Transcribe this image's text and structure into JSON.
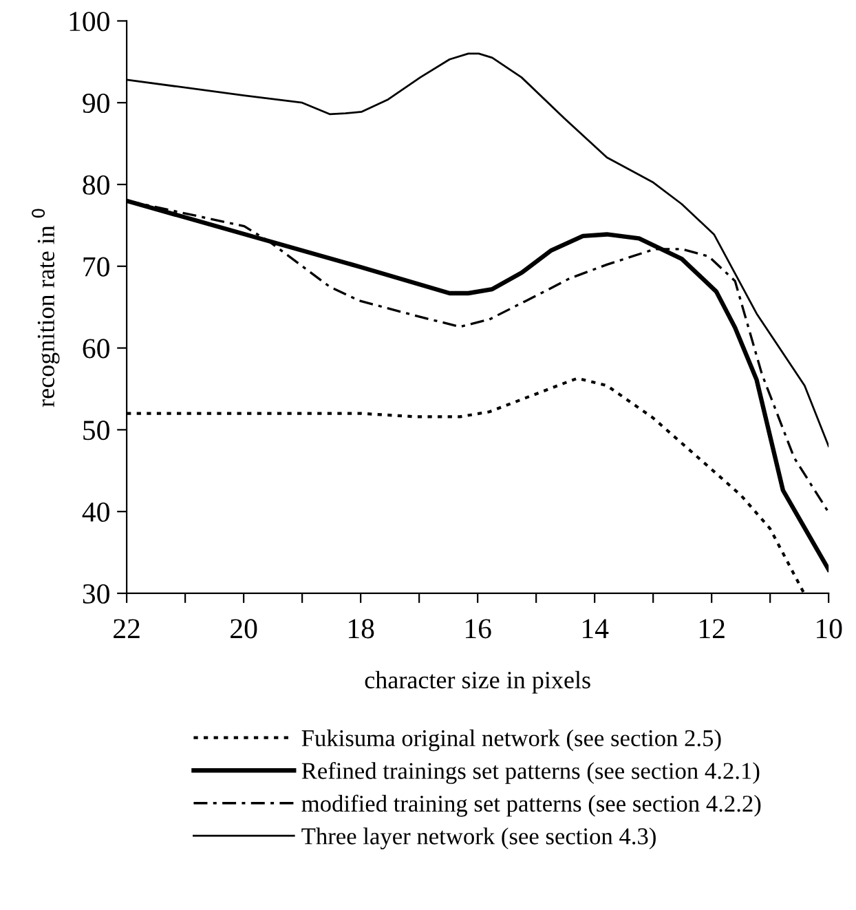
{
  "chart_data": {
    "type": "line",
    "xlabel": "character size in pixels",
    "ylabel": "recognition rate in $^{0}$",
    "xlim": [
      22,
      10
    ],
    "ylim": [
      30,
      100
    ],
    "xticks": [
      22,
      {
        "value": 21,
        "label": null
      },
      20,
      {
        "value": 19,
        "label": null
      },
      18,
      {
        "value": 17,
        "label": null
      },
      16,
      {
        "value": 15,
        "label": null
      },
      14,
      {
        "value": 13,
        "label": null
      },
      12,
      {
        "value": 11,
        "label": null
      },
      10
    ],
    "yticks": [
      30,
      40,
      50,
      60,
      70,
      80,
      90,
      100
    ],
    "grid": false,
    "legend": "bottom",
    "marker": "none",
    "series": [
      {
        "name": "Fukisuma original network (see section 2.5)",
        "color": "#000000",
        "line_style": "dotted",
        "x": [
          22,
          20,
          18,
          17.07,
          16.3,
          15.8,
          14.52,
          14.29,
          13.79,
          13.01,
          12.23,
          11.5,
          11.0,
          10.42
        ],
        "values": [
          52,
          52,
          52,
          51.6,
          51.6,
          52.2,
          55.7,
          56.3,
          55.4,
          51.5,
          46.6,
          42.0,
          37.9,
          30
        ]
      },
      {
        "name": "Refined trainings set patterns (see section 4.2.1)",
        "color": "#000000",
        "line_style": "solid",
        "x": [
          22,
          18,
          16.48,
          16.16,
          15.75,
          15.25,
          14.75,
          14.2,
          13.79,
          13.24,
          12.51,
          11.92,
          11.6,
          11.23,
          10.78,
          10
        ],
        "values": [
          78,
          69.9,
          66.7,
          66.7,
          67.2,
          69.2,
          71.9,
          73.7,
          73.9,
          73.4,
          70.9,
          66.9,
          62.5,
          56.1,
          42.6,
          32.9
        ]
      },
      {
        "name": "modified training set patterns (see section 4.2.2)",
        "color": "#000000",
        "line_style": "dashdot",
        "x": [
          22,
          21.09,
          19.99,
          19.54,
          18.53,
          18.03,
          16.98,
          16.3,
          15.8,
          14.97,
          14.43,
          13.79,
          12.97,
          12.51,
          12.05,
          11.6,
          11.14,
          10.59,
          10
        ],
        "values": [
          78,
          76.6,
          74.9,
          72.9,
          67.5,
          65.8,
          63.8,
          62.6,
          63.5,
          66.5,
          68.5,
          70.2,
          72.1,
          72.1,
          71.2,
          68.2,
          56.8,
          46.6,
          39.9
        ]
      },
      {
        "name": "Three layer network (see section 4.3)",
        "color": "#000000",
        "line_style": "solid",
        "x": [
          22,
          20,
          19,
          18.53,
          18.26,
          17.98,
          17.53,
          16.98,
          16.48,
          16.16,
          15.98,
          15.75,
          15.25,
          14.52,
          13.79,
          13.01,
          12.51,
          11.96,
          11.23,
          10.41,
          10
        ],
        "values": [
          92.8,
          90.9,
          90.0,
          88.6,
          88.7,
          88.9,
          90.4,
          93.1,
          95.3,
          96.0,
          96.0,
          95.5,
          93.1,
          88.1,
          83.3,
          80.3,
          77.6,
          73.9,
          64.2,
          55.4,
          48.0
        ]
      }
    ]
  }
}
